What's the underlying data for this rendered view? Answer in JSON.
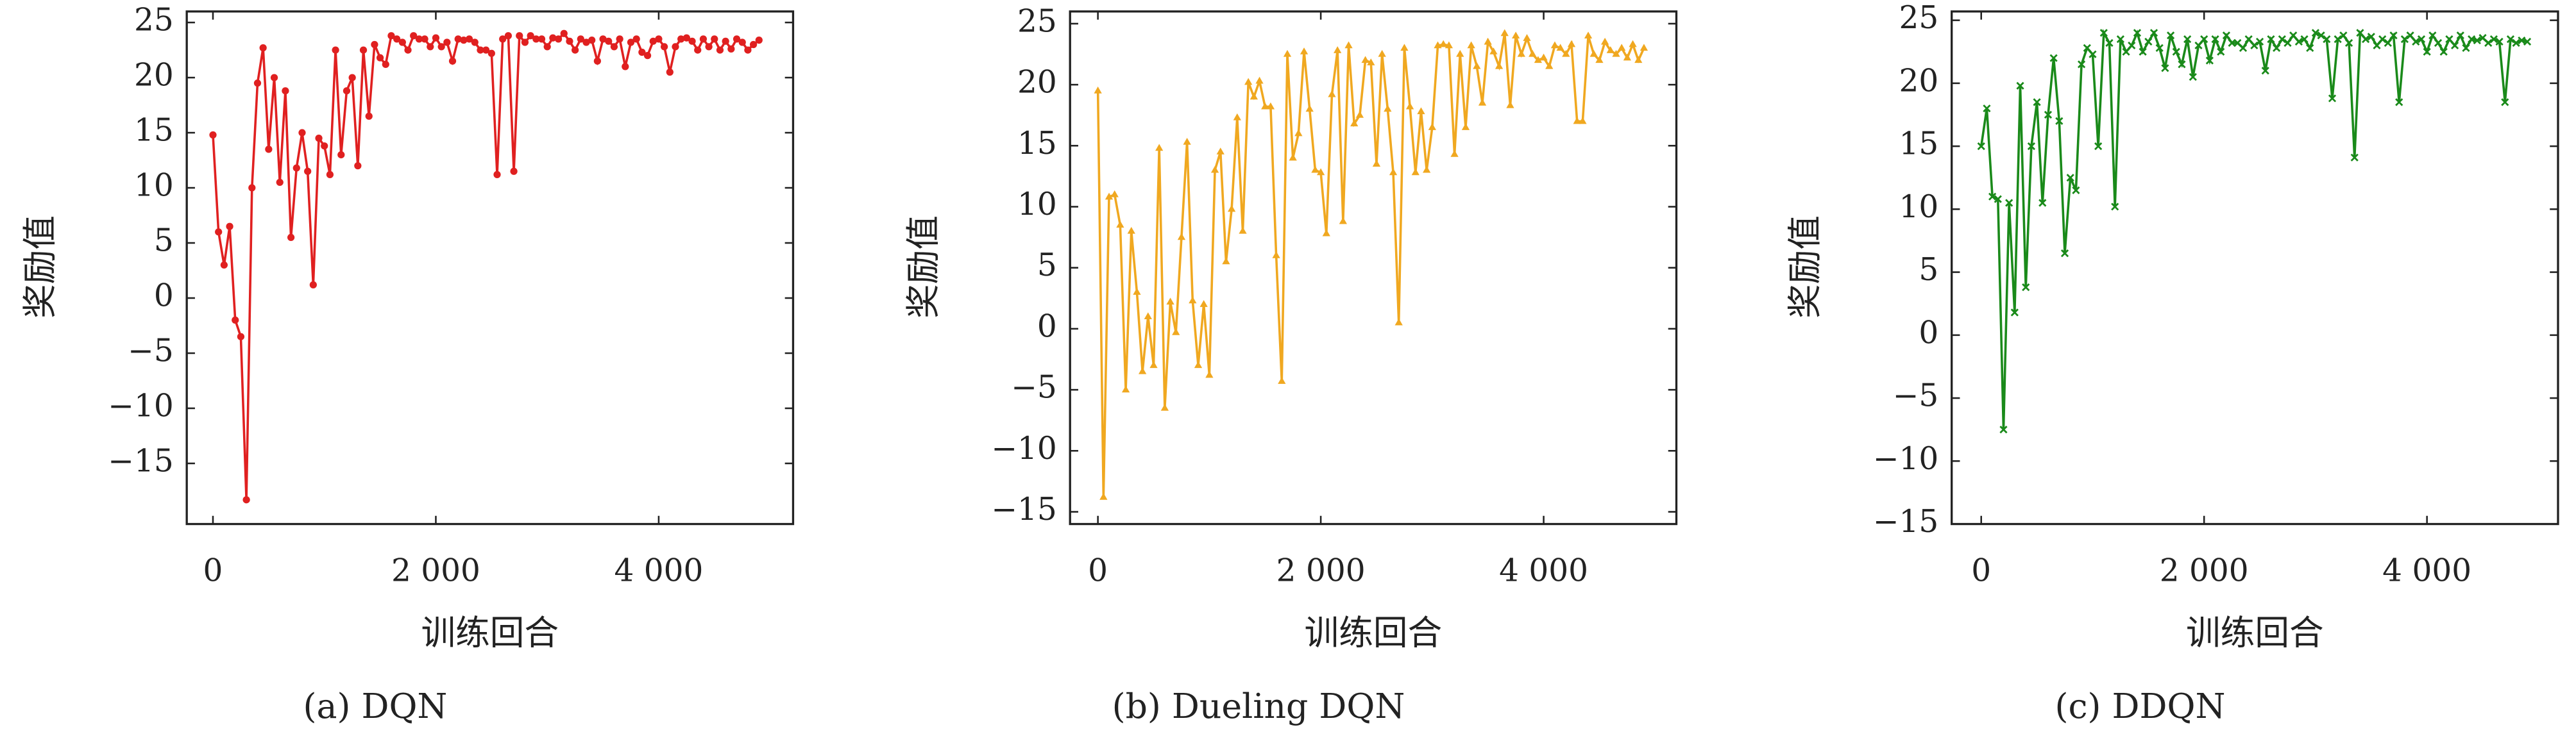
{
  "chart_data": [
    {
      "type": "line",
      "caption": "(a) DQN",
      "xlabel": "训练回合",
      "ylabel": "奖励值",
      "color": "#e02020",
      "marker": "circle",
      "xlim": [
        -235,
        5206
      ],
      "ylim": [
        -20.5,
        26
      ],
      "xticks": [
        0,
        {
          "value": 2000,
          "label": "2 000"
        },
        {
          "value": 4000,
          "label": "4 000"
        }
      ],
      "yticks": [
        {
          "value": -15,
          "label": "−15"
        },
        {
          "value": -10,
          "label": "−10"
        },
        {
          "value": -5,
          "label": "−5"
        },
        0,
        5,
        10,
        15,
        20,
        25
      ],
      "x": [
        0,
        50,
        100,
        150,
        200,
        250,
        300,
        350,
        400,
        450,
        500,
        550,
        600,
        650,
        700,
        750,
        800,
        850,
        900,
        950,
        1000,
        1050,
        1100,
        1150,
        1200,
        1250,
        1300,
        1350,
        1400,
        1450,
        1500,
        1550,
        1600,
        1650,
        1700,
        1750,
        1800,
        1850,
        1900,
        1950,
        2000,
        2050,
        2100,
        2150,
        2200,
        2250,
        2300,
        2350,
        2400,
        2450,
        2500,
        2550,
        2600,
        2650,
        2700,
        2750,
        2800,
        2850,
        2900,
        2950,
        3000,
        3050,
        3100,
        3150,
        3200,
        3250,
        3300,
        3350,
        3400,
        3450,
        3500,
        3550,
        3600,
        3650,
        3700,
        3750,
        3800,
        3850,
        3900,
        3950,
        4000,
        4050,
        4100,
        4150,
        4200,
        4250,
        4300,
        4350,
        4400,
        4450,
        4500,
        4550,
        4600,
        4650,
        4700,
        4750,
        4800,
        4850,
        4900
      ],
      "values": [
        14.8,
        6,
        3,
        6.5,
        -2,
        -3.5,
        -18.3,
        10,
        19.5,
        22.7,
        13.5,
        20,
        10.5,
        18.8,
        5.5,
        11.8,
        15,
        11.5,
        1.2,
        14.5,
        13.8,
        11.2,
        22.5,
        13,
        18.8,
        20,
        12,
        22.5,
        16.5,
        23,
        21.8,
        21.2,
        23.8,
        23.5,
        23.2,
        22.5,
        23.8,
        23.5,
        23.5,
        22.8,
        23.6,
        22.8,
        23.2,
        21.5,
        23.5,
        23.4,
        23.5,
        23.2,
        22.5,
        22.5,
        22.2,
        11.2,
        23.5,
        23.8,
        11.5,
        23.8,
        23.2,
        23.8,
        23.5,
        23.5,
        22.8,
        23.6,
        23.5,
        24,
        23.3,
        22.5,
        23.5,
        23.2,
        23.4,
        21.5,
        23.5,
        23.3,
        22.8,
        23.5,
        21,
        23.2,
        23.5,
        22.3,
        22,
        23.3,
        23.5,
        22.8,
        20.5,
        22.8,
        23.5,
        23.6,
        23.3,
        22.5,
        23.5,
        22.8,
        23.5,
        22.5,
        23.3,
        22.6,
        23.5,
        23.2,
        22.5,
        23,
        23.4
      ]
    },
    {
      "type": "line",
      "caption": "(b) Dueling DQN",
      "xlabel": "训练回合",
      "ylabel": "奖励值",
      "color": "#f0a820",
      "marker": "triangle",
      "xlim": [
        -250,
        5191
      ],
      "ylim": [
        -16,
        26
      ],
      "xticks": [
        0,
        {
          "value": 2000,
          "label": "2 000"
        },
        {
          "value": 4000,
          "label": "4 000"
        }
      ],
      "yticks": [
        {
          "value": -15,
          "label": "−15"
        },
        {
          "value": -10,
          "label": "−10"
        },
        {
          "value": -5,
          "label": "−5"
        },
        0,
        5,
        10,
        15,
        20,
        25
      ],
      "x": [
        0,
        50,
        100,
        150,
        200,
        250,
        300,
        350,
        400,
        450,
        500,
        550,
        600,
        650,
        700,
        750,
        800,
        850,
        900,
        950,
        1000,
        1050,
        1100,
        1150,
        1200,
        1250,
        1300,
        1350,
        1400,
        1450,
        1500,
        1550,
        1600,
        1650,
        1700,
        1750,
        1800,
        1850,
        1900,
        1950,
        2000,
        2050,
        2100,
        2150,
        2200,
        2250,
        2300,
        2350,
        2400,
        2450,
        2500,
        2550,
        2600,
        2650,
        2700,
        2750,
        2800,
        2850,
        2900,
        2950,
        3000,
        3050,
        3100,
        3150,
        3200,
        3250,
        3300,
        3350,
        3400,
        3450,
        3500,
        3550,
        3600,
        3650,
        3700,
        3750,
        3800,
        3850,
        3900,
        3950,
        4000,
        4050,
        4100,
        4150,
        4200,
        4250,
        4300,
        4350,
        4400,
        4450,
        4500,
        4550,
        4600,
        4650,
        4700,
        4750,
        4800,
        4850,
        4900
      ],
      "values": [
        19.5,
        -13.8,
        10.8,
        11,
        8.5,
        -5,
        8,
        3,
        -3.5,
        1,
        -3,
        14.8,
        -6.5,
        2.2,
        -0.3,
        7.5,
        15.3,
        2.3,
        -3,
        2,
        -3.8,
        13,
        14.5,
        5.5,
        9.8,
        17.3,
        8,
        20.2,
        19,
        20.3,
        18.2,
        18.2,
        6,
        -4.3,
        22.5,
        14,
        16,
        22.7,
        18,
        13,
        12.8,
        7.8,
        19.2,
        22.8,
        8.8,
        23.2,
        16.8,
        17.5,
        22,
        21.8,
        13.5,
        22.5,
        18,
        12.8,
        0.5,
        23,
        18.2,
        12.8,
        17.8,
        13,
        16.5,
        23.2,
        23.3,
        23.2,
        14.3,
        22.5,
        16.5,
        23.2,
        21.5,
        18.5,
        23.5,
        22.7,
        21.5,
        24.2,
        18.3,
        24,
        22.5,
        23.8,
        22.5,
        22,
        22.2,
        21.5,
        23.2,
        23,
        22.5,
        23.3,
        17,
        17,
        24,
        22.5,
        22,
        23.5,
        22.8,
        22.5,
        23,
        22.2,
        23.3,
        22,
        23
      ]
    },
    {
      "type": "line",
      "caption": "(c) DDQN",
      "xlabel": "训练回合",
      "ylabel": "奖励值",
      "color": "#1a8a1a",
      "marker": "cross",
      "xlim": [
        -265,
        5176
      ],
      "ylim": [
        -15,
        25.7
      ],
      "xticks": [
        0,
        {
          "value": 2000,
          "label": "2 000"
        },
        {
          "value": 4000,
          "label": "4 000"
        }
      ],
      "yticks": [
        {
          "value": -15,
          "label": "−15"
        },
        {
          "value": -10,
          "label": "−10"
        },
        {
          "value": -5,
          "label": "−5"
        },
        0,
        5,
        10,
        15,
        20,
        25
      ],
      "x": [
        0,
        50,
        100,
        150,
        200,
        250,
        300,
        350,
        400,
        450,
        500,
        550,
        600,
        650,
        700,
        750,
        800,
        850,
        900,
        950,
        1000,
        1050,
        1100,
        1150,
        1200,
        1250,
        1300,
        1350,
        1400,
        1450,
        1500,
        1550,
        1600,
        1650,
        1700,
        1750,
        1800,
        1850,
        1900,
        1950,
        2000,
        2050,
        2100,
        2150,
        2200,
        2250,
        2300,
        2350,
        2400,
        2450,
        2500,
        2550,
        2600,
        2650,
        2700,
        2750,
        2800,
        2850,
        2900,
        2950,
        3000,
        3050,
        3100,
        3150,
        3200,
        3250,
        3300,
        3350,
        3400,
        3450,
        3500,
        3550,
        3600,
        3650,
        3700,
        3750,
        3800,
        3850,
        3900,
        3950,
        4000,
        4050,
        4100,
        4150,
        4200,
        4250,
        4300,
        4350,
        4400,
        4450,
        4500,
        4550,
        4600,
        4650,
        4700,
        4750,
        4800,
        4850,
        4900
      ],
      "values": [
        15,
        18,
        11,
        10.8,
        -7.5,
        10.5,
        1.8,
        19.8,
        3.8,
        15,
        18.5,
        10.5,
        17.5,
        22,
        17,
        6.5,
        12.5,
        11.5,
        21.5,
        22.8,
        22.3,
        15,
        24,
        23.2,
        10.2,
        23.5,
        22.5,
        23,
        24,
        22.5,
        23.3,
        24,
        22.8,
        21.2,
        23.8,
        22.5,
        21.5,
        23.5,
        20.5,
        23,
        23.5,
        21.8,
        23.5,
        22.5,
        23.8,
        23.2,
        23.2,
        22.8,
        23.5,
        23,
        23.3,
        21,
        23.5,
        22.8,
        23.5,
        23.2,
        23.8,
        23.3,
        23.5,
        22.8,
        24,
        23.8,
        23.5,
        18.8,
        23.5,
        23.8,
        23.2,
        14.1,
        24,
        23.5,
        23.7,
        23,
        23.5,
        23.2,
        23.8,
        18.5,
        23.5,
        23.8,
        23.3,
        23.5,
        22.5,
        23.8,
        23.2,
        22.5,
        23.5,
        23,
        23.8,
        22.8,
        23.5,
        23.4,
        23.6,
        23.2,
        23.5,
        23.3,
        18.5,
        23.5,
        23.2,
        23.4,
        23.3
      ]
    }
  ]
}
